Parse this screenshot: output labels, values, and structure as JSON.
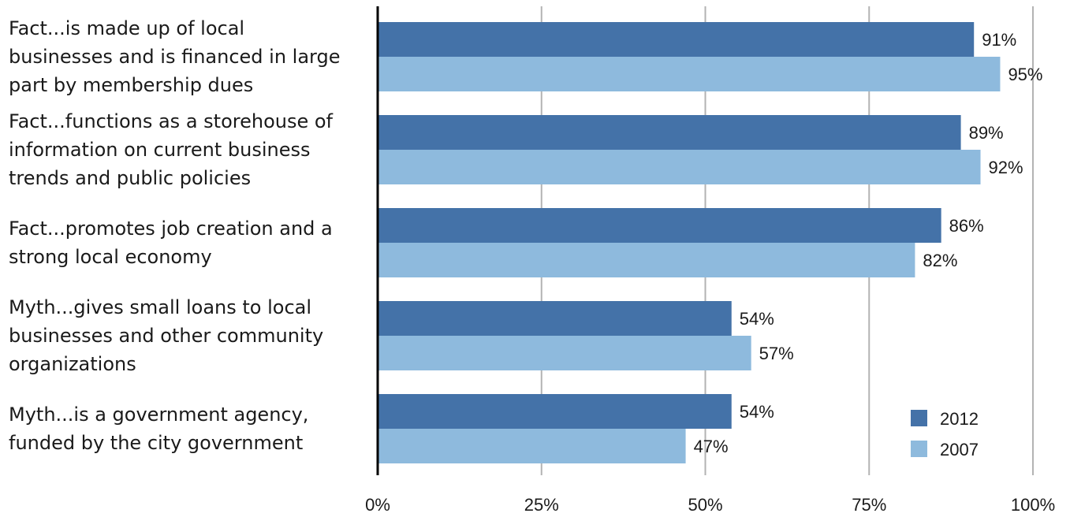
{
  "chart_data": {
    "type": "bar",
    "orientation": "horizontal",
    "categories": [
      [
        "Fact...is made up of  local",
        "businesses and is financed in large",
        "part by membership dues"
      ],
      [
        "Fact...functions as a storehouse of",
        "information on current business",
        "trends and public policies"
      ],
      [
        "Fact...promotes job creation and a",
        "strong local economy"
      ],
      [
        "Myth...gives small loans to local",
        "businesses and other community",
        "organizations"
      ],
      [
        "Myth...is a government agency,",
        "funded by the city government"
      ]
    ],
    "series": [
      {
        "name": "2012",
        "color": "#4472a8",
        "values": [
          91,
          89,
          86,
          54,
          54
        ],
        "labels": [
          "91%",
          "89%",
          "86%",
          "54%",
          "54%"
        ]
      },
      {
        "name": "2007",
        "color": "#8ebadd",
        "values": [
          95,
          92,
          82,
          57,
          47
        ],
        "labels": [
          "95%",
          "92%",
          "82%",
          "57%",
          "47%"
        ]
      }
    ],
    "xlim": [
      0,
      100
    ],
    "xticks": [
      0,
      25,
      50,
      75,
      100
    ],
    "xtick_labels": [
      "0%",
      "25%",
      "50%",
      "75%",
      "100%"
    ],
    "grid": "vertical",
    "gridline_color": "#b3b3b3",
    "legend_position": "bottom-right",
    "title": "",
    "xlabel": "",
    "ylabel": ""
  }
}
